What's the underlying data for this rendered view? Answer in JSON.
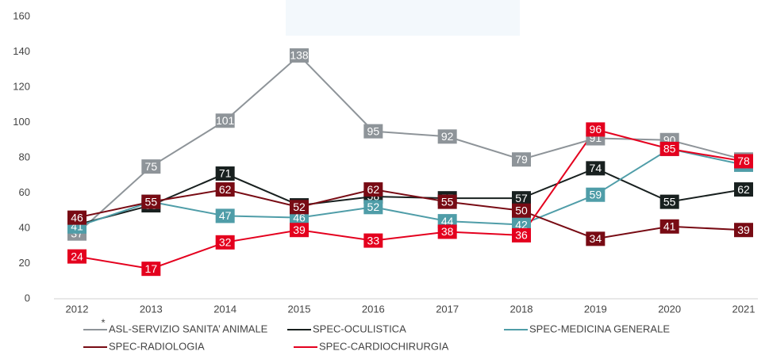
{
  "chart_data": {
    "type": "line",
    "categories": [
      "2012",
      "2013",
      "2014",
      "2015",
      "2016",
      "2017",
      "2018",
      "2019",
      "2020",
      "2021"
    ],
    "series": [
      {
        "name": "ASL-SERVIZIO SANITA’ ANIMALE",
        "color": "#8e9499",
        "values": [
          37,
          75,
          101,
          138,
          95,
          92,
          79,
          91,
          90,
          79
        ]
      },
      {
        "name": "SPEC-OCULISTICA",
        "color": "#18201f",
        "values": [
          42,
          53,
          71,
          53,
          58,
          57,
          57,
          74,
          55,
          62
        ]
      },
      {
        "name": "SPEC-MEDICINA GENERALE",
        "color": "#4f9da8",
        "values": [
          41,
          55,
          47,
          46,
          52,
          44,
          42,
          59,
          85,
          76
        ]
      },
      {
        "name": "SPEC-RADIOLOGIA",
        "color": "#780b14",
        "values": [
          46,
          55,
          62,
          52,
          62,
          55,
          50,
          34,
          41,
          39
        ]
      },
      {
        "name": "SPEC-CARDIOCHIRURGIA",
        "color": "#e4001e",
        "values": [
          24,
          17,
          32,
          39,
          33,
          38,
          36,
          96,
          85,
          78
        ]
      }
    ],
    "annotation": "*",
    "ylim": [
      0,
      160
    ],
    "yticks": [
      0,
      20,
      40,
      60,
      80,
      100,
      120,
      140,
      160
    ],
    "grid": false
  }
}
